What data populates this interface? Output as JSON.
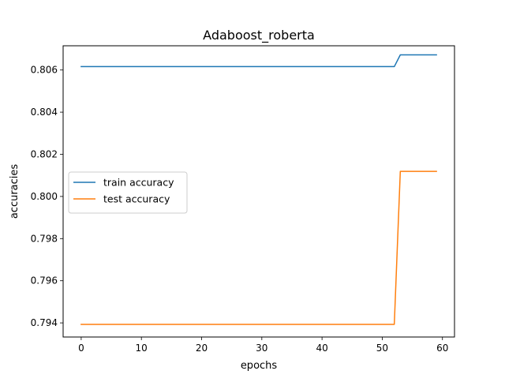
{
  "chart_data": {
    "type": "line",
    "title": "Adaboost_roberta",
    "xlabel": "epochs",
    "ylabel": "accuracies",
    "xlim": [
      -3,
      62
    ],
    "ylim": [
      0.79333,
      0.80715
    ],
    "xticks": [
      0,
      10,
      20,
      30,
      40,
      50,
      60
    ],
    "yticks": [
      0.794,
      0.796,
      0.798,
      0.8,
      0.802,
      0.804,
      0.806
    ],
    "ytick_decimals": 3,
    "grid": false,
    "legend": {
      "position": "center-left"
    },
    "series": [
      {
        "name": "train accuracy",
        "color": "#1f77b4",
        "points": [
          [
            0,
            0.80616
          ],
          [
            52,
            0.80616
          ],
          [
            53,
            0.80672
          ],
          [
            59,
            0.80672
          ]
        ]
      },
      {
        "name": "test accuracy",
        "color": "#ff7f0e",
        "points": [
          [
            0,
            0.79393
          ],
          [
            52,
            0.79393
          ],
          [
            53,
            0.80119
          ],
          [
            59,
            0.80119
          ]
        ]
      }
    ]
  }
}
